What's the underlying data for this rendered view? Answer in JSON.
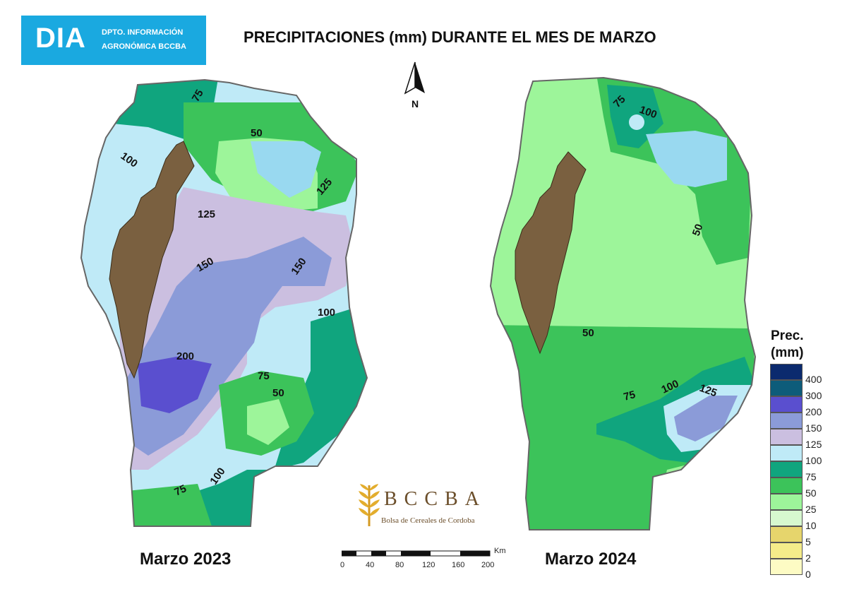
{
  "header": {
    "logo_main": "DIA",
    "logo_line1": "DPTO. INFORMACIÓN",
    "logo_line2": "AGRONÓMICA BCCBA",
    "title": "PRECIPITACIONES (mm) DURANTE EL MES DE MARZO"
  },
  "maps": [
    {
      "caption": "Marzo 2023",
      "contour_labels": [
        "75",
        "50",
        "100",
        "125",
        "125",
        "150",
        "150",
        "100",
        "200",
        "75",
        "50",
        "100",
        "75"
      ]
    },
    {
      "caption": "Marzo 2024",
      "contour_labels": [
        "75",
        "100",
        "50",
        "50",
        "75",
        "100",
        "125"
      ]
    }
  ],
  "north_label": "N",
  "legend": {
    "title_line1": "Prec.",
    "title_line2": "(mm)",
    "classes": [
      {
        "label": "400",
        "color": "#0b2a6e"
      },
      {
        "label": "300",
        "color": "#0d5c7a"
      },
      {
        "label": "200",
        "color": "#5a4fcf"
      },
      {
        "label": "150",
        "color": "#8b9bd8"
      },
      {
        "label": "125",
        "color": "#cbbfe0"
      },
      {
        "label": "100",
        "color": "#bfeaf7"
      },
      {
        "label": "75",
        "color": "#10a57e"
      },
      {
        "label": "50",
        "color": "#3cc35a"
      },
      {
        "label": "25",
        "color": "#9df59a"
      },
      {
        "label": "10",
        "color": "#d7f8cf"
      },
      {
        "label": "5",
        "color": "#e6d56c"
      },
      {
        "label": "2",
        "color": "#f5ec8a"
      },
      {
        "label": "0",
        "color": "#fdfbc4"
      }
    ]
  },
  "scale_bar": {
    "unit": "Km",
    "ticks": [
      "0",
      "40",
      "80",
      "120",
      "160",
      "200"
    ]
  },
  "brand": {
    "name": "BCCBA",
    "subtitle": "Bolsa de Cereales de Cordoba"
  },
  "colors": {
    "mountain": "#7a6040",
    "reservoir": "#99d9f0",
    "logo_bg": "#1aa9e0"
  }
}
